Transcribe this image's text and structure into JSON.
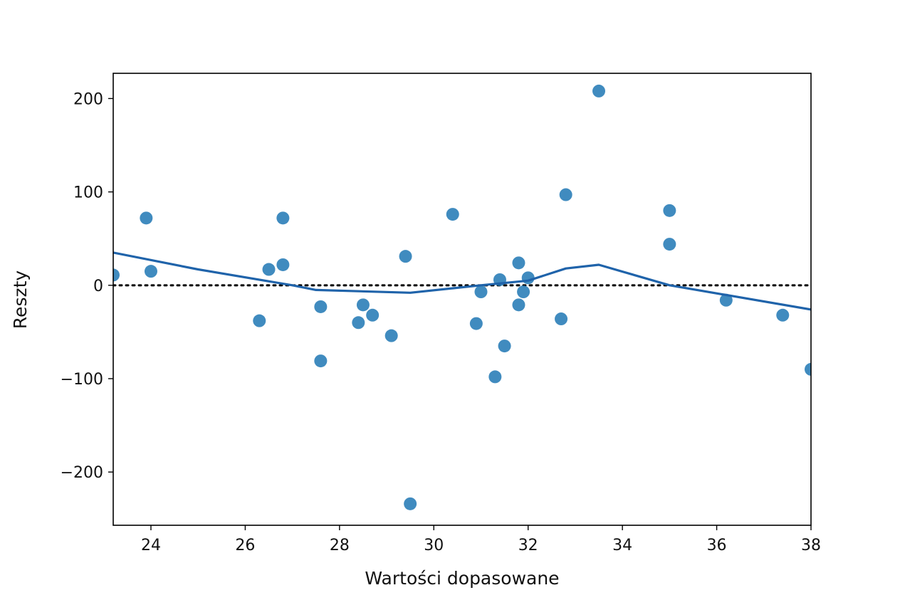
{
  "chart_data": {
    "type": "scatter",
    "title": "",
    "xlabel": "Wartości dopasowane",
    "ylabel": "Reszty",
    "xlim": [
      23.2,
      38
    ],
    "ylim": [
      -257,
      227
    ],
    "xticks": [
      24,
      26,
      28,
      30,
      32,
      34,
      36,
      38
    ],
    "xtick_labels": [
      "24",
      "26",
      "28",
      "30",
      "32",
      "34",
      "36",
      "38"
    ],
    "yticks": [
      -200,
      -100,
      0,
      100,
      200
    ],
    "ytick_labels": [
      "−200",
      "−100",
      "0",
      "100",
      "200"
    ],
    "grid": false,
    "legend": "none",
    "colors": {
      "points": "#1f77b4",
      "smooth_line": "#1f63aa",
      "zero_line": "#000000"
    },
    "series": [
      {
        "type": "scatter",
        "points": [
          [
            23.2,
            11
          ],
          [
            23.9,
            72
          ],
          [
            24.0,
            15
          ],
          [
            26.3,
            -38
          ],
          [
            26.5,
            17
          ],
          [
            26.8,
            72
          ],
          [
            26.8,
            22
          ],
          [
            27.6,
            -23
          ],
          [
            27.6,
            -81
          ],
          [
            28.4,
            -40
          ],
          [
            28.5,
            -21
          ],
          [
            28.7,
            -32
          ],
          [
            29.1,
            -54
          ],
          [
            29.4,
            31
          ],
          [
            29.5,
            -234
          ],
          [
            30.4,
            76
          ],
          [
            30.9,
            -41
          ],
          [
            31.0,
            -7
          ],
          [
            31.3,
            -98
          ],
          [
            31.4,
            6
          ],
          [
            31.5,
            -65
          ],
          [
            31.8,
            -21
          ],
          [
            31.8,
            24
          ],
          [
            31.9,
            -7
          ],
          [
            32.0,
            8
          ],
          [
            32.7,
            -36
          ],
          [
            32.8,
            97
          ],
          [
            33.5,
            208
          ],
          [
            35.0,
            80
          ],
          [
            35.0,
            44
          ],
          [
            36.2,
            -16
          ],
          [
            37.4,
            -32
          ],
          [
            38.0,
            -90
          ]
        ]
      },
      {
        "type": "line",
        "points": [
          [
            23.2,
            35
          ],
          [
            25.0,
            17
          ],
          [
            27.0,
            0
          ],
          [
            27.5,
            -5
          ],
          [
            29.5,
            -8
          ],
          [
            31.0,
            0
          ],
          [
            32.0,
            5
          ],
          [
            32.8,
            18
          ],
          [
            33.5,
            22
          ],
          [
            35.0,
            0
          ],
          [
            38.0,
            -26
          ]
        ]
      },
      {
        "type": "reference",
        "y": 0
      }
    ]
  }
}
